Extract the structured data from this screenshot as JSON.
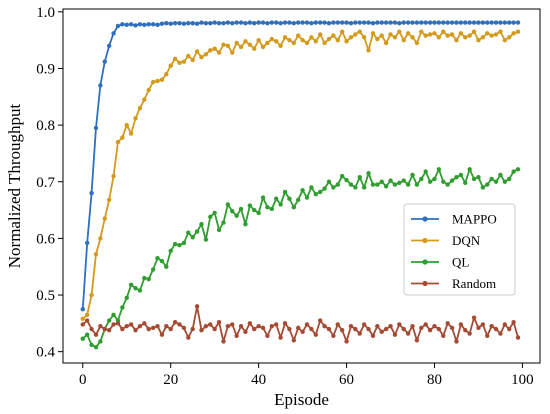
{
  "chart_data": {
    "type": "line",
    "title": "",
    "xlabel": "Episode",
    "ylabel": "Normalized Throughput",
    "xlim": [
      -4.5,
      104
    ],
    "ylim": [
      0.38,
      1.005
    ],
    "xticks": [
      0,
      20,
      40,
      60,
      80,
      100
    ],
    "yticks": [
      0.4,
      0.5,
      0.6,
      0.7,
      0.8,
      0.9,
      1.0
    ],
    "xtick_labels": [
      "0",
      "20",
      "40",
      "60",
      "80",
      "100"
    ],
    "ytick_labels": [
      "0.4",
      "0.5",
      "0.6",
      "0.7",
      "0.8",
      "0.9",
      "1.0"
    ],
    "legend_position": "center-right",
    "grid": false,
    "x": [
      0,
      1,
      2,
      3,
      4,
      5,
      6,
      7,
      8,
      9,
      10,
      11,
      12,
      13,
      14,
      15,
      16,
      17,
      18,
      19,
      20,
      21,
      22,
      23,
      24,
      25,
      26,
      27,
      28,
      29,
      30,
      31,
      32,
      33,
      34,
      35,
      36,
      37,
      38,
      39,
      40,
      41,
      42,
      43,
      44,
      45,
      46,
      47,
      48,
      49,
      50,
      51,
      52,
      53,
      54,
      55,
      56,
      57,
      58,
      59,
      60,
      61,
      62,
      63,
      64,
      65,
      66,
      67,
      68,
      69,
      70,
      71,
      72,
      73,
      74,
      75,
      76,
      77,
      78,
      79,
      80,
      81,
      82,
      83,
      84,
      85,
      86,
      87,
      88,
      89,
      90,
      91,
      92,
      93,
      94,
      95,
      96,
      97,
      98,
      99
    ],
    "series": [
      {
        "name": "MAPPO",
        "color": "#2f6fbf",
        "values": [
          0.475,
          0.592,
          0.68,
          0.795,
          0.87,
          0.912,
          0.94,
          0.962,
          0.975,
          0.978,
          0.977,
          0.978,
          0.976,
          0.978,
          0.977,
          0.978,
          0.978,
          0.977,
          0.979,
          0.98,
          0.979,
          0.98,
          0.98,
          0.979,
          0.98,
          0.98,
          0.979,
          0.981,
          0.98,
          0.98,
          0.981,
          0.98,
          0.98,
          0.981,
          0.98,
          0.981,
          0.981,
          0.98,
          0.981,
          0.98,
          0.981,
          0.981,
          0.98,
          0.981,
          0.981,
          0.98,
          0.981,
          0.981,
          0.98,
          0.981,
          0.981,
          0.981,
          0.98,
          0.981,
          0.981,
          0.981,
          0.98,
          0.981,
          0.981,
          0.981,
          0.981,
          0.98,
          0.981,
          0.981,
          0.981,
          0.981,
          0.98,
          0.981,
          0.981,
          0.981,
          0.981,
          0.981,
          0.98,
          0.981,
          0.981,
          0.981,
          0.981,
          0.981,
          0.981,
          0.981,
          0.981,
          0.981,
          0.981,
          0.981,
          0.981,
          0.981,
          0.981,
          0.981,
          0.981,
          0.981,
          0.981,
          0.981,
          0.981,
          0.981,
          0.981,
          0.981,
          0.981,
          0.981,
          0.981,
          0.981
        ]
      },
      {
        "name": "DQN",
        "color": "#d49a1c",
        "values": [
          0.458,
          0.465,
          0.5,
          0.572,
          0.6,
          0.635,
          0.668,
          0.71,
          0.77,
          0.778,
          0.8,
          0.785,
          0.812,
          0.83,
          0.845,
          0.862,
          0.876,
          0.878,
          0.88,
          0.89,
          0.905,
          0.917,
          0.91,
          0.912,
          0.922,
          0.915,
          0.93,
          0.92,
          0.925,
          0.932,
          0.935,
          0.928,
          0.942,
          0.94,
          0.928,
          0.945,
          0.938,
          0.948,
          0.942,
          0.935,
          0.95,
          0.938,
          0.945,
          0.952,
          0.948,
          0.94,
          0.955,
          0.95,
          0.945,
          0.958,
          0.95,
          0.945,
          0.955,
          0.948,
          0.96,
          0.945,
          0.952,
          0.958,
          0.95,
          0.965,
          0.948,
          0.955,
          0.96,
          0.965,
          0.955,
          0.932,
          0.962,
          0.952,
          0.958,
          0.945,
          0.96,
          0.955,
          0.965,
          0.95,
          0.962,
          0.955,
          0.945,
          0.965,
          0.958,
          0.96,
          0.962,
          0.955,
          0.965,
          0.958,
          0.96,
          0.95,
          0.962,
          0.955,
          0.958,
          0.965,
          0.95,
          0.955,
          0.962,
          0.958,
          0.96,
          0.965,
          0.95,
          0.955,
          0.962,
          0.965
        ]
      },
      {
        "name": "QL",
        "color": "#2f9e2f",
        "values": [
          0.423,
          0.43,
          0.412,
          0.408,
          0.418,
          0.44,
          0.455,
          0.465,
          0.455,
          0.478,
          0.495,
          0.518,
          0.512,
          0.508,
          0.53,
          0.528,
          0.545,
          0.565,
          0.56,
          0.55,
          0.578,
          0.59,
          0.588,
          0.592,
          0.61,
          0.602,
          0.612,
          0.625,
          0.598,
          0.638,
          0.645,
          0.615,
          0.628,
          0.66,
          0.648,
          0.64,
          0.652,
          0.625,
          0.658,
          0.65,
          0.645,
          0.672,
          0.655,
          0.652,
          0.67,
          0.66,
          0.682,
          0.67,
          0.655,
          0.668,
          0.685,
          0.672,
          0.69,
          0.678,
          0.682,
          0.688,
          0.7,
          0.69,
          0.695,
          0.71,
          0.703,
          0.695,
          0.69,
          0.708,
          0.69,
          0.715,
          0.695,
          0.695,
          0.7,
          0.692,
          0.702,
          0.695,
          0.698,
          0.702,
          0.695,
          0.712,
          0.695,
          0.705,
          0.718,
          0.7,
          0.705,
          0.722,
          0.7,
          0.695,
          0.702,
          0.708,
          0.712,
          0.698,
          0.722,
          0.705,
          0.708,
          0.69,
          0.695,
          0.705,
          0.7,
          0.712,
          0.7,
          0.705,
          0.718,
          0.722
        ]
      },
      {
        "name": "Random",
        "color": "#a64b33",
        "values": [
          0.448,
          0.455,
          0.44,
          0.43,
          0.445,
          0.44,
          0.438,
          0.448,
          0.45,
          0.44,
          0.445,
          0.448,
          0.438,
          0.445,
          0.45,
          0.44,
          0.442,
          0.445,
          0.43,
          0.445,
          0.44,
          0.452,
          0.448,
          0.442,
          0.425,
          0.44,
          0.48,
          0.438,
          0.445,
          0.448,
          0.44,
          0.452,
          0.418,
          0.445,
          0.448,
          0.428,
          0.445,
          0.435,
          0.45,
          0.44,
          0.445,
          0.442,
          0.428,
          0.445,
          0.448,
          0.425,
          0.45,
          0.44,
          0.42,
          0.442,
          0.435,
          0.448,
          0.44,
          0.43,
          0.455,
          0.445,
          0.44,
          0.428,
          0.448,
          0.438,
          0.418,
          0.445,
          0.44,
          0.432,
          0.448,
          0.44,
          0.428,
          0.445,
          0.435,
          0.44,
          0.445,
          0.43,
          0.448,
          0.44,
          0.432,
          0.445,
          0.42,
          0.442,
          0.448,
          0.438,
          0.445,
          0.44,
          0.428,
          0.45,
          0.442,
          0.418,
          0.448,
          0.438,
          0.432,
          0.46,
          0.442,
          0.448,
          0.428,
          0.445,
          0.44,
          0.432,
          0.448,
          0.44,
          0.452,
          0.425
        ]
      }
    ]
  }
}
